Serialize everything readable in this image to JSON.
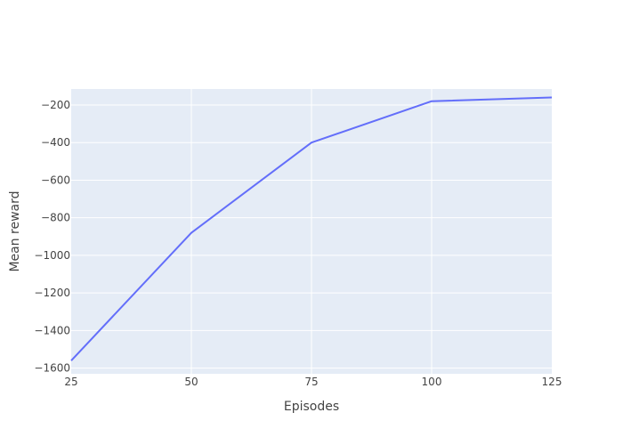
{
  "chart_data": {
    "type": "line",
    "title": "",
    "xlabel": "Episodes",
    "ylabel": "Mean reward",
    "x": [
      25,
      50,
      75,
      100,
      125
    ],
    "series": [
      {
        "values": [
          -1560,
          -880,
          -400,
          -180,
          -160
        ]
      }
    ],
    "xlim": [
      25,
      125
    ],
    "ylim": [
      -1630,
      -115
    ],
    "xticks": [
      25,
      50,
      75,
      100,
      125
    ],
    "yticks": [
      -1600,
      -1400,
      -1200,
      -1000,
      -800,
      -600,
      -400,
      -200
    ],
    "xtick_labels": [
      "25",
      "50",
      "75",
      "100",
      "125"
    ],
    "ytick_labels": [
      "−1600",
      "−1400",
      "−1200",
      "−1000",
      "−800",
      "−600",
      "−400",
      "−200"
    ],
    "grid": true,
    "colors": {
      "plot_bg": "#E5ECF6",
      "grid": "#ffffff",
      "line": "#636EFA"
    }
  }
}
